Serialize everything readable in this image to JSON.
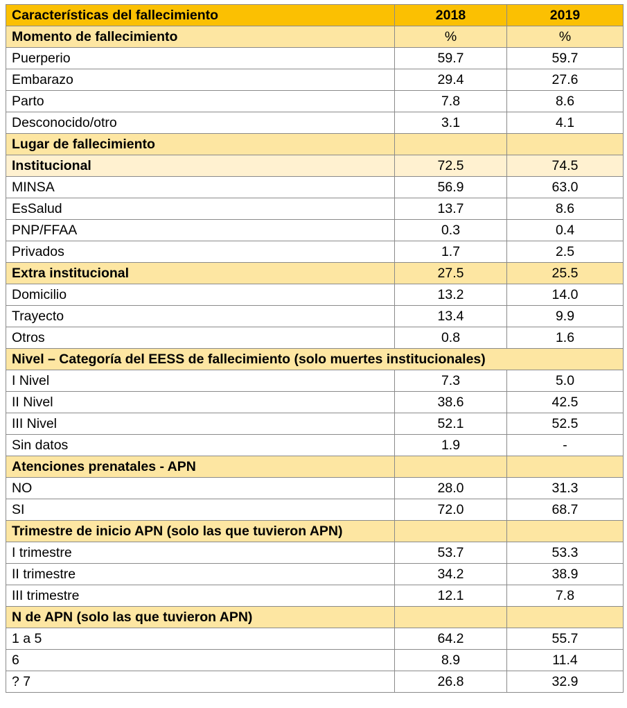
{
  "header": {
    "label": "Características del fallecimiento",
    "y2018": "2018",
    "y2019": "2019"
  },
  "momento": {
    "title": "Momento de fallecimiento",
    "u2018": "%",
    "u2019": "%",
    "rows": [
      {
        "label": "Puerperio",
        "v2018": "59.7",
        "v2019": "59.7"
      },
      {
        "label": "Embarazo",
        "v2018": "29.4",
        "v2019": "27.6"
      },
      {
        "label": "Parto",
        "v2018": "7.8",
        "v2019": "8.6"
      },
      {
        "label": "Desconocido/otro",
        "v2018": "3.1",
        "v2019": "4.1"
      }
    ]
  },
  "lugar": {
    "title": "Lugar de fallecimiento",
    "institucional": {
      "label": "Institucional",
      "v2018": "72.5",
      "v2019": "74.5"
    },
    "inst_rows": [
      {
        "label": "MINSA",
        "v2018": "56.9",
        "v2019": "63.0"
      },
      {
        "label": "EsSalud",
        "v2018": "13.7",
        "v2019": "8.6"
      },
      {
        "label": "PNP/FFAA",
        "v2018": "0.3",
        "v2019": "0.4"
      },
      {
        "label": "Privados",
        "v2018": "1.7",
        "v2019": "2.5"
      }
    ],
    "extra": {
      "label": "Extra institucional",
      "v2018": "27.5",
      "v2019": "25.5"
    },
    "extra_rows": [
      {
        "label": "Domicilio",
        "v2018": "13.2",
        "v2019": "14.0"
      },
      {
        "label": "Trayecto",
        "v2018": "13.4",
        "v2019": "9.9"
      },
      {
        "label": "Otros",
        "v2018": "0.8",
        "v2019": "1.6"
      }
    ]
  },
  "nivel": {
    "title": "Nivel – Categoría del EESS de fallecimiento (solo muertes institucionales)",
    "rows": [
      {
        "label": "I Nivel",
        "v2018": "7.3",
        "v2019": "5.0"
      },
      {
        "label": "II Nivel",
        "v2018": "38.6",
        "v2019": "42.5"
      },
      {
        "label": "III Nivel",
        "v2018": "52.1",
        "v2019": "52.5"
      },
      {
        "label": "Sin datos",
        "v2018": "1.9",
        "v2019": "-"
      }
    ]
  },
  "apn": {
    "title": "Atenciones prenatales - APN",
    "rows": [
      {
        "label": "NO",
        "v2018": "28.0",
        "v2019": "31.3"
      },
      {
        "label": "SI",
        "v2018": "72.0",
        "v2019": "68.7"
      }
    ]
  },
  "trimestre": {
    "title": "Trimestre de inicio APN (solo las que tuvieron APN)",
    "rows": [
      {
        "label": "I trimestre",
        "v2018": "53.7",
        "v2019": "53.3"
      },
      {
        "label": "II trimestre",
        "v2018": "34.2",
        "v2019": "38.9"
      },
      {
        "label": "III trimestre",
        "v2018": "12.1",
        "v2019": "7.8"
      }
    ]
  },
  "napn": {
    "title": "N de APN (solo las que tuvieron APN)",
    "rows": [
      {
        "label": "1 a 5",
        "v2018": "64.2",
        "v2019": "55.7"
      },
      {
        "label": "6",
        "v2018": "8.9",
        "v2019": "11.4"
      },
      {
        "label": "? 7",
        "v2018": "26.8",
        "v2019": "32.9"
      }
    ]
  },
  "colors": {
    "header": "#fbc002",
    "section": "#fde6a2",
    "subsection": "#fff1d0"
  }
}
